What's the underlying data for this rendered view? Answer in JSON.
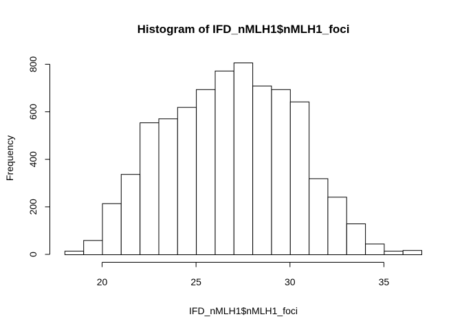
{
  "chart_data": {
    "type": "bar",
    "title": "Histogram of IFD_nMLH1$nMLH1_foci",
    "xlabel": "IFD_nMLH1$nMLH1_foci",
    "ylabel": "Frequency",
    "bin_edges": [
      18,
      19,
      20,
      21,
      22,
      23,
      24,
      25,
      26,
      27,
      28,
      29,
      30,
      31,
      32,
      33,
      34,
      35,
      36,
      37
    ],
    "values": [
      15,
      60,
      215,
      338,
      555,
      572,
      620,
      695,
      773,
      807,
      710,
      695,
      643,
      320,
      242,
      130,
      45,
      15,
      18
    ],
    "xlim": [
      17.2,
      37.4
    ],
    "ylim": [
      0,
      810
    ],
    "x_ticks": [
      20,
      25,
      30,
      35
    ],
    "y_ticks": [
      0,
      200,
      400,
      600,
      800
    ],
    "grid": false,
    "legend": "none"
  }
}
